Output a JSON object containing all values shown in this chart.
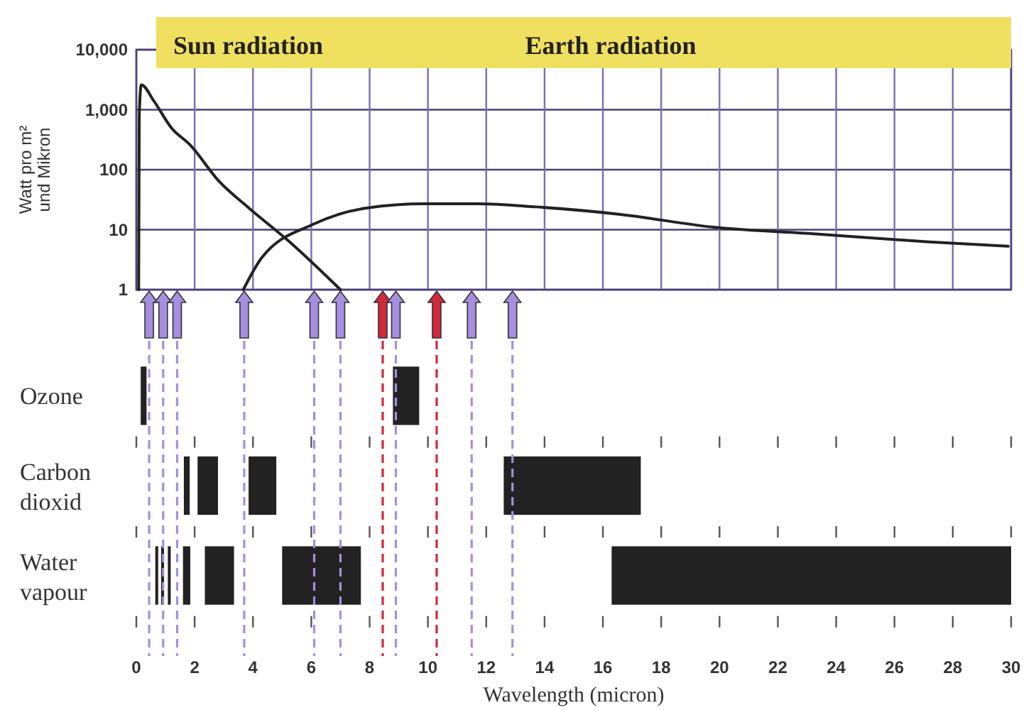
{
  "chart_data": [
    {
      "type": "line",
      "ylabel": "Watt pro m²\nund Mikron",
      "log": true,
      "grid": true,
      "tick_labels": "y",
      "xlim": [
        0,
        30
      ],
      "xticks": [
        0,
        2,
        4,
        6,
        8,
        10,
        12,
        14,
        16,
        18,
        20,
        22,
        24,
        26,
        28,
        30
      ],
      "ylim": [
        1,
        10000
      ],
      "yticks": [
        {
          "value": 1,
          "label": "1"
        },
        {
          "value": 10,
          "label": "10"
        },
        {
          "value": 100,
          "label": "100"
        },
        {
          "value": 1000,
          "label": "1,000"
        },
        {
          "value": 10000,
          "label": "10,000"
        }
      ],
      "annotations": [
        "Sun radiation",
        "Earth radiation"
      ],
      "series": [
        {
          "color": "#222222",
          "x": [
            0.08,
            0.1,
            0.17,
            0.6,
            1.2,
            1.84,
            2.85,
            3.86,
            5.3,
            7.0
          ],
          "values": [
            1,
            800,
            2600,
            1400,
            500,
            260,
            63,
            23,
            6,
            1
          ]
        },
        {
          "color": "#222222",
          "x": [
            3.67,
            4.3,
            6.1,
            7.9,
            9.9,
            11.7,
            13.7,
            16.6,
            19.8,
            23.3,
            27.1,
            29.9
          ],
          "values": [
            1,
            3.4,
            12.5,
            23,
            27,
            27,
            24,
            18,
            11,
            8.5,
            6.3,
            5.3
          ]
        }
      ]
    },
    {
      "type": "bar",
      "orientation": "horizontal",
      "xlabel": "Wavelength (micron)",
      "categories": [
        "Ozone",
        "Carbon\ndioxid",
        "Water\nvapour"
      ],
      "xlim": [
        0,
        30
      ],
      "xticks": [
        0,
        2,
        4,
        6,
        8,
        10,
        12,
        14,
        16,
        18,
        20,
        22,
        24,
        26,
        28,
        30
      ],
      "ref_lines": [
        {
          "axis": "x",
          "value": 0.44,
          "color": "#a68ee0",
          "line_style": "dashed"
        },
        {
          "axis": "x",
          "value": 0.92,
          "color": "#a68ee0",
          "line_style": "dashed"
        },
        {
          "axis": "x",
          "value": 1.4,
          "color": "#a68ee0",
          "line_style": "dashed"
        },
        {
          "axis": "x",
          "value": 3.7,
          "color": "#a68ee0",
          "line_style": "dashed"
        },
        {
          "axis": "x",
          "value": 6.1,
          "color": "#a68ee0",
          "line_style": "dashed"
        },
        {
          "axis": "x",
          "value": 7.0,
          "color": "#a68ee0",
          "line_style": "dashed"
        },
        {
          "axis": "x",
          "value": 8.45,
          "color": "#d0283c",
          "line_style": "dashed"
        },
        {
          "axis": "x",
          "value": 8.9,
          "color": "#a68ee0",
          "line_style": "dashed"
        },
        {
          "axis": "x",
          "value": 10.3,
          "color": "#d0283c",
          "line_style": "dashed"
        },
        {
          "axis": "x",
          "value": 11.5,
          "color": "#a68ee0",
          "line_style": "dashed"
        },
        {
          "axis": "x",
          "value": 12.9,
          "color": "#a68ee0",
          "line_style": "dashed"
        }
      ],
      "series": [
        {
          "color": "#222222",
          "base": [
            0.15,
            1.63,
            0.65
          ],
          "values": [
            0.2,
            0.2,
            0.1
          ]
        },
        {
          "color": "#222222",
          "base": [
            8.8,
            2.1,
            0.85
          ],
          "values": [
            0.9,
            0.7,
            0.1
          ]
        },
        {
          "color": "#222222",
          "base": [
            null,
            3.85,
            1.08
          ],
          "values": [
            null,
            0.95,
            0.1
          ]
        },
        {
          "color": "#222222",
          "base": [
            null,
            12.6,
            1.6
          ],
          "values": [
            null,
            4.7,
            0.25
          ]
        },
        {
          "color": "#222222",
          "base": [
            null,
            null,
            2.35
          ],
          "values": [
            null,
            null,
            1.0
          ]
        },
        {
          "color": "#222222",
          "base": [
            null,
            null,
            5.0
          ],
          "values": [
            null,
            null,
            2.7
          ]
        },
        {
          "color": "#222222",
          "base": [
            null,
            null,
            16.3
          ],
          "values": [
            null,
            null,
            13.7
          ]
        }
      ]
    }
  ]
}
